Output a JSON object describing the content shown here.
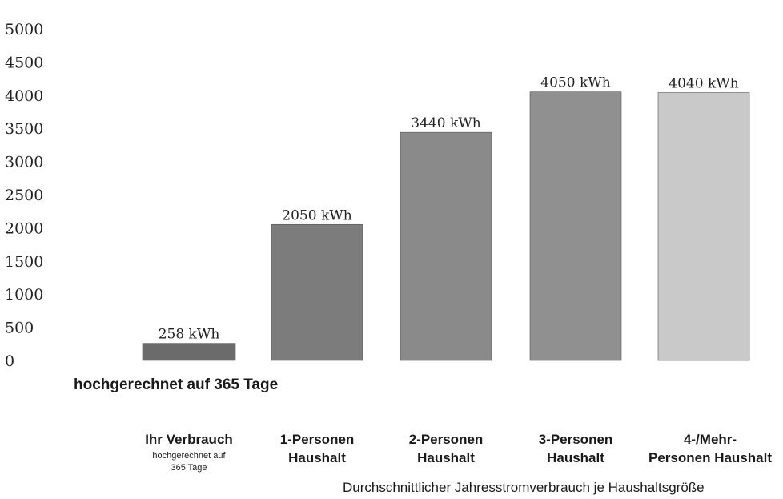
{
  "chart_data": {
    "type": "bar",
    "ylim": [
      0,
      5000
    ],
    "yticks": [
      0,
      500,
      1000,
      1500,
      2000,
      2500,
      3000,
      3500,
      4000,
      4500,
      5000
    ],
    "categories": [
      {
        "lines": [
          "Ihr Verbrauch"
        ],
        "sub": [
          "hochgerechnet auf",
          "365 Tage"
        ]
      },
      {
        "lines": [
          "1-Personen",
          "Haushalt"
        ],
        "sub": []
      },
      {
        "lines": [
          "2-Personen",
          "Haushalt"
        ],
        "sub": []
      },
      {
        "lines": [
          "3-Personen",
          "Haushalt"
        ],
        "sub": []
      },
      {
        "lines": [
          "4-/Mehr-",
          "Personen Haushalt"
        ],
        "sub": []
      }
    ],
    "values": [
      258,
      2050,
      3440,
      4050,
      4040
    ],
    "data_labels": [
      "258 kWh",
      "2050 kWh",
      "3440 kWh",
      "4050 kWh",
      "4040 kWh"
    ],
    "colors": [
      "#6b6b6b",
      "#7c7c7c",
      "#8a8a8a",
      "#909090",
      "#c9c9c9"
    ],
    "annotation": "hochgerechnet auf 365 Tage",
    "caption": "Durchschnittlicher Jahresstromverbrauch je Haushaltsgröße",
    "grid": false,
    "legend": "none"
  }
}
